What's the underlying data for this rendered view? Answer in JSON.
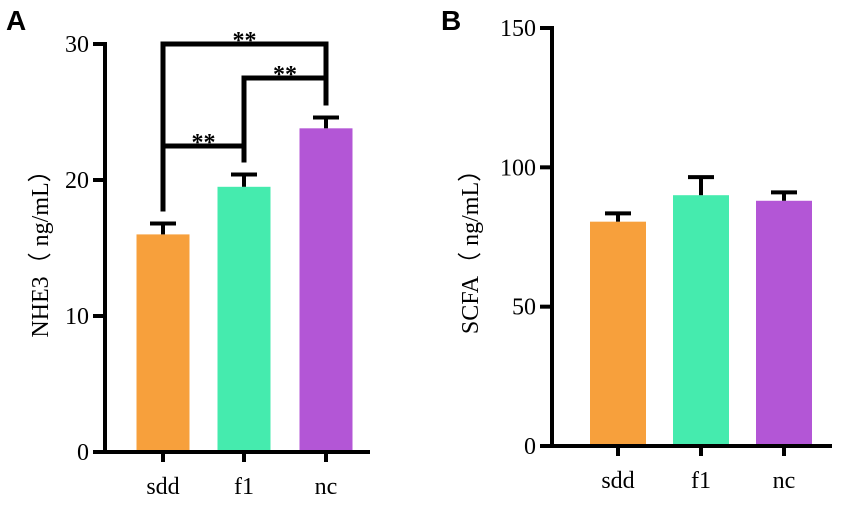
{
  "chart_data": [
    {
      "panel": "A",
      "type": "bar",
      "title": "",
      "xlabel": "",
      "ylabel": "NHE3（ ng/mL）",
      "ylim": [
        0,
        30
      ],
      "yticks": [
        0,
        10,
        20,
        30
      ],
      "categories": [
        "sdd",
        "f1",
        "nc"
      ],
      "values": [
        16.0,
        19.5,
        23.8
      ],
      "errors": [
        0.8,
        0.9,
        0.8
      ],
      "colors": [
        "#F7A03C",
        "#45EBAE",
        "#B356D6"
      ],
      "significance": [
        {
          "from": 0,
          "to": 1,
          "label": "**",
          "y": 22.5
        },
        {
          "from": 1,
          "to": 2,
          "label": "**",
          "y": 27.5
        },
        {
          "from": 0,
          "to": 2,
          "label": "**",
          "y": 30.0
        }
      ]
    },
    {
      "panel": "B",
      "type": "bar",
      "title": "",
      "xlabel": "",
      "ylabel": "SCFA（ ng/mL）",
      "ylim": [
        0,
        150
      ],
      "yticks": [
        0,
        50,
        100,
        150
      ],
      "categories": [
        "sdd",
        "f1",
        "nc"
      ],
      "values": [
        80.5,
        90.0,
        88.0
      ],
      "errors": [
        3.0,
        6.5,
        3.0
      ],
      "colors": [
        "#F7A03C",
        "#45EBAE",
        "#B356D6"
      ],
      "significance": []
    }
  ]
}
